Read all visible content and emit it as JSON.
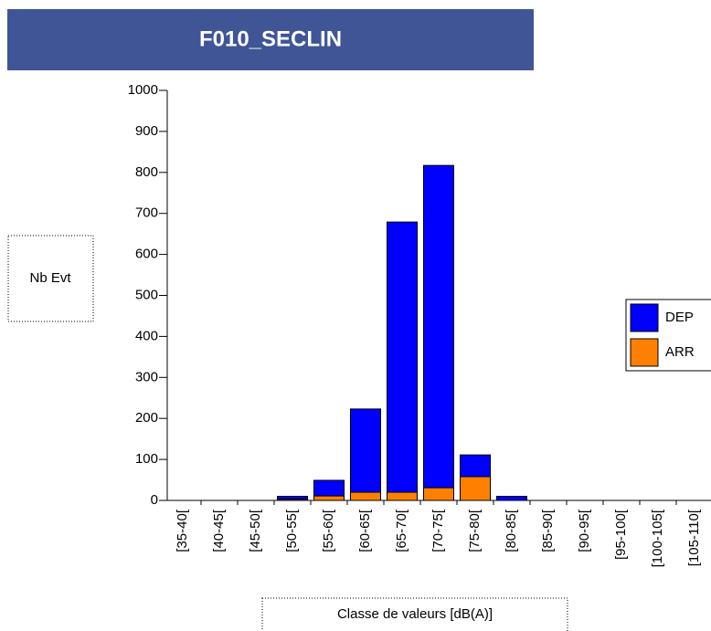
{
  "chart_data": {
    "type": "stacked_bar",
    "title": "F010_SECLIN",
    "y_label": "Nb Evt",
    "x_label": "Classe de valeurs [dB(A)]",
    "categories": [
      "[35-40[",
      "[40-45[",
      "[45-50[",
      "[50-55[",
      "[55-60[",
      "[60-65[",
      "[65-70[",
      "[70-75[",
      "[75-80[",
      "[80-85[",
      "[85-90[",
      "[90-95[",
      "[95-100[",
      "[100-105[",
      "[105-110["
    ],
    "series": [
      {
        "name": "ARR",
        "color": "#ff8000",
        "values": [
          0,
          0,
          0,
          3,
          11,
          20,
          20,
          31,
          58,
          0,
          0,
          0,
          0,
          0,
          0
        ]
      },
      {
        "name": "DEP",
        "color": "#0000ff",
        "values": [
          0,
          0,
          0,
          7,
          38,
          203,
          659,
          786,
          53,
          10,
          0,
          0,
          0,
          0,
          0
        ]
      }
    ],
    "legend_order": [
      "DEP",
      "ARR"
    ],
    "ylim": [
      0,
      1000
    ],
    "yticks": [
      0,
      100,
      200,
      300,
      400,
      500,
      600,
      700,
      800,
      900,
      1000
    ]
  }
}
